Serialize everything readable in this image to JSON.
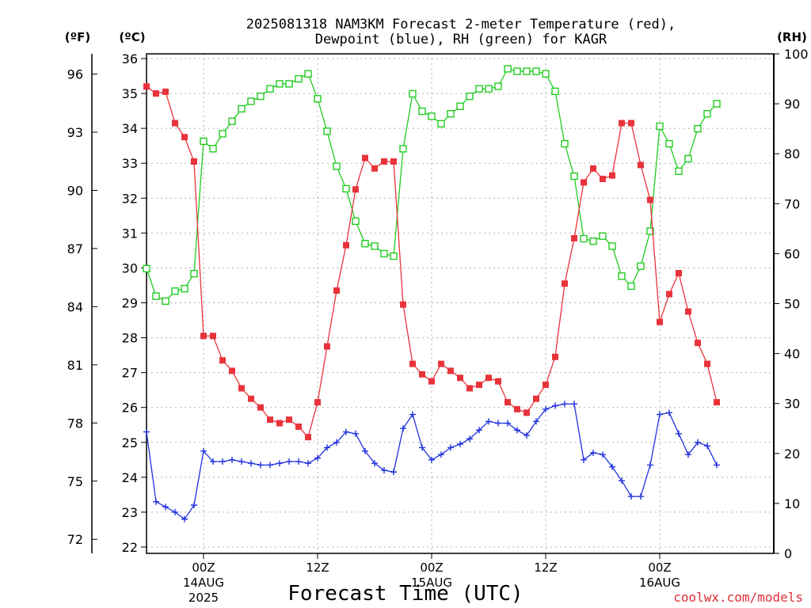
{
  "chart_data": {
    "type": "line",
    "title": "2025081318 NAM3KM Forecast 2-meter Temperature (red),",
    "subtitle": "Dewpoint (blue), RH (green) for KAGR",
    "xlabel": "Forecast Time (UTC)",
    "credit": "coolwx.com/models",
    "units": {
      "fahrenheit": "(ºF)",
      "celsius": "(ºC)",
      "rh": "(RH)"
    },
    "y_left_c": {
      "ylim": [
        22,
        36
      ],
      "ticks": [
        "22",
        "23",
        "24",
        "25",
        "26",
        "27",
        "28",
        "29",
        "30",
        "31",
        "32",
        "33",
        "34",
        "35",
        "36"
      ]
    },
    "y_left_f": {
      "ticks": [
        "72",
        "75",
        "78",
        "81",
        "84",
        "87",
        "90",
        "93",
        "96"
      ]
    },
    "y_right": {
      "ylim": [
        0,
        100
      ],
      "ticks": [
        "0",
        "10",
        "20",
        "30",
        "40",
        "50",
        "60",
        "70",
        "80",
        "90",
        "100"
      ]
    },
    "x_range_hours": [
      0,
      66
    ],
    "x_ticks": [
      {
        "hour": 6,
        "label": "00Z",
        "date": "14AUG",
        "year": "2025"
      },
      {
        "hour": 18,
        "label": "12Z",
        "date": "",
        "year": ""
      },
      {
        "hour": 30,
        "label": "00Z",
        "date": "15AUG",
        "year": ""
      },
      {
        "hour": 42,
        "label": "12Z",
        "date": "",
        "year": ""
      },
      {
        "hour": 54,
        "label": "00Z",
        "date": "16AUG",
        "year": ""
      }
    ],
    "grid": true,
    "hours": [
      0,
      1,
      2,
      3,
      4,
      5,
      6,
      7,
      8,
      9,
      10,
      11,
      12,
      13,
      14,
      15,
      16,
      17,
      18,
      19,
      20,
      21,
      22,
      23,
      24,
      25,
      26,
      27,
      28,
      29,
      30,
      31,
      32,
      33,
      34,
      35,
      36,
      37,
      38,
      39,
      40,
      41,
      42,
      43,
      44,
      45,
      46,
      47,
      48,
      49,
      50,
      51,
      52,
      53,
      54,
      55,
      56,
      57,
      58,
      59,
      60
    ],
    "series": [
      {
        "name": "Temperature",
        "color": "#e8333b",
        "marker": "filled-square",
        "axis": "celsius",
        "values": [
          35.2,
          35.0,
          35.05,
          34.15,
          33.75,
          33.05,
          28.05,
          28.05,
          27.35,
          27.05,
          26.55,
          26.25,
          26.0,
          25.65,
          25.55,
          25.65,
          25.45,
          25.15,
          26.15,
          27.75,
          29.35,
          30.65,
          32.25,
          33.15,
          32.85,
          33.05,
          33.05,
          28.95,
          27.25,
          26.95,
          26.75,
          27.25,
          27.05,
          26.85,
          26.55,
          26.65,
          26.85,
          26.75,
          26.15,
          25.95,
          25.85,
          26.25,
          26.65,
          27.45,
          29.55,
          30.85,
          32.45,
          32.85,
          32.55,
          32.65,
          34.15,
          34.15,
          32.95,
          31.95,
          28.45,
          29.25,
          29.85,
          28.75,
          27.85,
          27.25,
          26.15
        ]
      },
      {
        "name": "Dewpoint",
        "color": "#2233dd",
        "marker": "plus",
        "axis": "celsius",
        "values": [
          25.3,
          23.3,
          23.15,
          23.0,
          22.8,
          23.2,
          24.75,
          24.45,
          24.45,
          24.5,
          24.45,
          24.4,
          24.35,
          24.35,
          24.4,
          24.45,
          24.45,
          24.4,
          24.55,
          24.85,
          25.0,
          25.3,
          25.25,
          24.75,
          24.4,
          24.2,
          24.15,
          25.4,
          25.8,
          24.85,
          24.5,
          24.65,
          24.85,
          24.95,
          25.1,
          25.35,
          25.6,
          25.55,
          25.55,
          25.35,
          25.2,
          25.6,
          25.95,
          26.05,
          26.1,
          26.1,
          24.5,
          24.7,
          24.65,
          24.3,
          23.9,
          23.45,
          23.45,
          24.35,
          25.8,
          25.85,
          25.25,
          24.65,
          25.0,
          24.9,
          24.35
        ]
      },
      {
        "name": "RH",
        "color": "#22cc22",
        "marker": "open-square",
        "axis": "rh",
        "values": [
          57,
          51.5,
          50.5,
          52.5,
          53,
          56,
          82.5,
          81,
          84,
          86.5,
          89,
          90.5,
          91.5,
          93,
          94,
          94,
          95,
          96,
          91,
          84.5,
          77.5,
          73,
          66.5,
          62,
          61.5,
          60,
          59.5,
          81,
          92,
          88.5,
          87.5,
          86,
          88,
          89.5,
          91.5,
          93,
          93,
          93.5,
          97,
          96.5,
          96.5,
          96.5,
          96,
          92.5,
          82,
          75.5,
          63,
          62.5,
          63.5,
          61.5,
          55.5,
          53.5,
          57.5,
          64.5,
          85.5,
          82,
          76.5,
          79,
          85,
          88,
          90
        ]
      }
    ]
  }
}
